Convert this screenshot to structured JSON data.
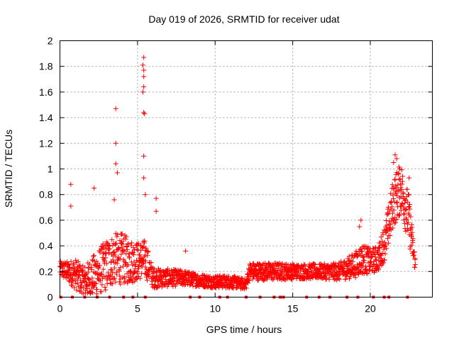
{
  "chart_data": {
    "type": "scatter",
    "title": "Day 019 of 2026, SRMTID for receiver udat",
    "xlabel": "GPS time / hours",
    "ylabel": "SRMTID / TECUs",
    "xlim": [
      0,
      24
    ],
    "ylim": [
      0,
      2
    ],
    "xticks": [
      0,
      5,
      10,
      15,
      20
    ],
    "yticks": [
      0,
      0.2,
      0.4,
      0.6,
      0.8,
      1,
      1.2,
      1.4,
      1.6,
      1.8,
      2
    ],
    "ytick_labels": [
      "0",
      "0.2",
      "0.4",
      "0.6",
      "0.8",
      "1",
      "1.2",
      "1.4",
      "1.6",
      "1.8",
      "2"
    ],
    "xtick_labels": [
      "0",
      "5",
      "10",
      "15",
      "20"
    ],
    "grid": true,
    "series": [
      {
        "name": "SRMTID",
        "color": "#ff0000",
        "marker": "plus",
        "profile": [
          {
            "t": 0.0,
            "base": 0.22,
            "spread": 0.06
          },
          {
            "t": 0.5,
            "base": 0.2,
            "spread": 0.08
          },
          {
            "t": 1.0,
            "base": 0.18,
            "spread": 0.12
          },
          {
            "t": 1.5,
            "base": 0.12,
            "spread": 0.12
          },
          {
            "t": 2.0,
            "base": 0.15,
            "spread": 0.15
          },
          {
            "t": 2.5,
            "base": 0.2,
            "spread": 0.18
          },
          {
            "t": 3.0,
            "base": 0.25,
            "spread": 0.2
          },
          {
            "t": 3.5,
            "base": 0.3,
            "spread": 0.2
          },
          {
            "t": 4.0,
            "base": 0.3,
            "spread": 0.2
          },
          {
            "t": 4.5,
            "base": 0.28,
            "spread": 0.18
          },
          {
            "t": 5.0,
            "base": 0.28,
            "spread": 0.15
          },
          {
            "t": 5.5,
            "base": 0.3,
            "spread": 0.15
          },
          {
            "t": 6.0,
            "base": 0.15,
            "spread": 0.08
          },
          {
            "t": 7.0,
            "base": 0.15,
            "spread": 0.07
          },
          {
            "t": 8.0,
            "base": 0.15,
            "spread": 0.06
          },
          {
            "t": 9.0,
            "base": 0.13,
            "spread": 0.05
          },
          {
            "t": 10.0,
            "base": 0.12,
            "spread": 0.05
          },
          {
            "t": 11.0,
            "base": 0.12,
            "spread": 0.05
          },
          {
            "t": 12.0,
            "base": 0.1,
            "spread": 0.04
          },
          {
            "t": 12.2,
            "base": 0.2,
            "spread": 0.07
          },
          {
            "t": 13.0,
            "base": 0.2,
            "spread": 0.07
          },
          {
            "t": 14.0,
            "base": 0.2,
            "spread": 0.07
          },
          {
            "t": 15.0,
            "base": 0.2,
            "spread": 0.06
          },
          {
            "t": 16.0,
            "base": 0.2,
            "spread": 0.06
          },
          {
            "t": 17.0,
            "base": 0.2,
            "spread": 0.06
          },
          {
            "t": 18.0,
            "base": 0.2,
            "spread": 0.07
          },
          {
            "t": 19.0,
            "base": 0.25,
            "spread": 0.1
          },
          {
            "t": 19.5,
            "base": 0.3,
            "spread": 0.12
          },
          {
            "t": 20.0,
            "base": 0.28,
            "spread": 0.1
          },
          {
            "t": 20.5,
            "base": 0.3,
            "spread": 0.1
          },
          {
            "t": 21.0,
            "base": 0.45,
            "spread": 0.15
          },
          {
            "t": 21.5,
            "base": 0.75,
            "spread": 0.2
          },
          {
            "t": 22.0,
            "base": 0.85,
            "spread": 0.2
          },
          {
            "t": 22.5,
            "base": 0.6,
            "spread": 0.2
          },
          {
            "t": 22.9,
            "base": 0.25,
            "spread": 0.05
          }
        ],
        "gaps": [
          [
            5.8,
            5.85
          ]
        ],
        "sample_step": 0.0125,
        "spikes": [
          {
            "x": 0.7,
            "y": 0.88
          },
          {
            "x": 0.7,
            "y": 0.71
          },
          {
            "x": 2.2,
            "y": 0.85
          },
          {
            "x": 3.6,
            "y": 1.47
          },
          {
            "x": 3.6,
            "y": 1.2
          },
          {
            "x": 3.6,
            "y": 1.04
          },
          {
            "x": 3.7,
            "y": 0.97
          },
          {
            "x": 3.5,
            "y": 0.76
          },
          {
            "x": 5.4,
            "y": 1.87
          },
          {
            "x": 5.35,
            "y": 1.81
          },
          {
            "x": 5.4,
            "y": 1.77
          },
          {
            "x": 5.4,
            "y": 1.72
          },
          {
            "x": 5.4,
            "y": 1.64
          },
          {
            "x": 5.35,
            "y": 1.6
          },
          {
            "x": 5.4,
            "y": 1.44
          },
          {
            "x": 5.45,
            "y": 1.43
          },
          {
            "x": 5.4,
            "y": 1.1
          },
          {
            "x": 5.4,
            "y": 0.93
          },
          {
            "x": 5.5,
            "y": 0.8
          },
          {
            "x": 6.2,
            "y": 0.77
          },
          {
            "x": 6.2,
            "y": 0.67
          },
          {
            "x": 21.6,
            "y": 1.11
          },
          {
            "x": 21.7,
            "y": 1.08
          },
          {
            "x": 21.5,
            "y": 1.05
          },
          {
            "x": 21.9,
            "y": 1.0
          },
          {
            "x": 22.5,
            "y": 0.93
          },
          {
            "x": 19.4,
            "y": 0.6
          },
          {
            "x": 19.3,
            "y": 0.55
          },
          {
            "x": 8.1,
            "y": 0.36
          }
        ],
        "zero_markers": [
          0.05,
          0.8,
          1.6,
          2.4,
          3.2,
          4.1,
          4.7,
          5.5,
          8.4,
          9.0,
          10.3,
          10.8,
          12.0,
          12.9,
          13.8,
          14.2,
          14.4,
          15.9,
          16.7,
          17.4,
          18.5,
          19.2,
          20.2,
          20.9,
          21.2,
          22.4
        ]
      }
    ]
  }
}
